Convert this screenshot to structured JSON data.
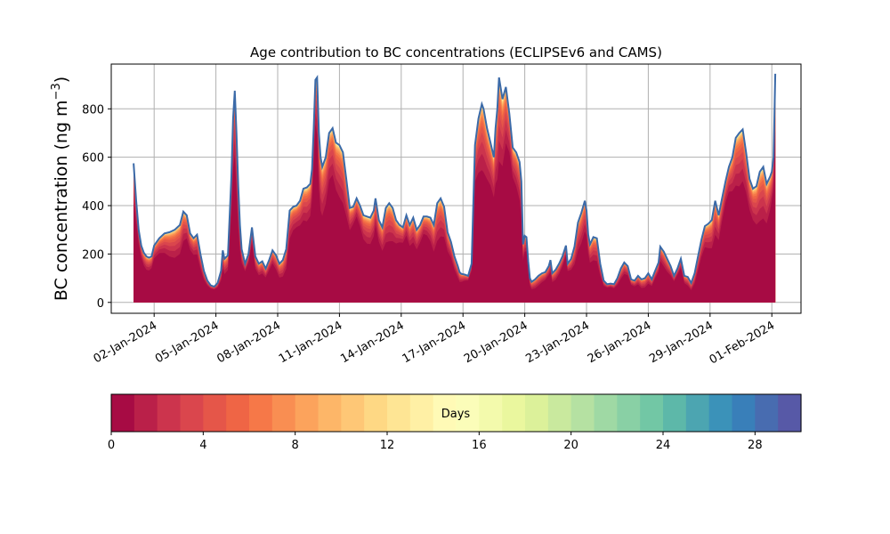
{
  "chart_data": {
    "type": "area",
    "title": "Age contribution to BC concentrations (ECLIPSEv6 and CAMS)",
    "ylabel": "BC concentration (ng m",
    "ylabel_sup": "−3",
    "ylabel_close": ")",
    "xlabel": "",
    "ylim": [
      -45,
      985
    ],
    "yticks": [
      0,
      200,
      400,
      600,
      800
    ],
    "xlim": [
      "2023-12-30T22:00",
      "2024-02-02T10:00"
    ],
    "xticks": [
      "02-Jan-2024",
      "05-Jan-2024",
      "08-Jan-2024",
      "11-Jan-2024",
      "14-Jan-2024",
      "17-Jan-2024",
      "20-Jan-2024",
      "23-Jan-2024",
      "26-Jan-2024",
      "29-Jan-2024",
      "01-Feb-2024"
    ],
    "xtick_dates": [
      "2024-01-02",
      "2024-01-05",
      "2024-01-08",
      "2024-01-11",
      "2024-01-14",
      "2024-01-17",
      "2024-01-20",
      "2024-01-23",
      "2024-01-26",
      "2024-01-29",
      "2024-02-01"
    ],
    "grid": true,
    "series_note_colormap": "Spectral",
    "total": [
      [
        "2024-01-01T00:00",
        575
      ],
      [
        "2024-01-01T03:00",
        420
      ],
      [
        "2024-01-01T06:00",
        300
      ],
      [
        "2024-01-01T09:00",
        235
      ],
      [
        "2024-01-01T12:00",
        205
      ],
      [
        "2024-01-01T15:00",
        190
      ],
      [
        "2024-01-01T18:00",
        185
      ],
      [
        "2024-01-01T21:00",
        190
      ],
      [
        "2024-01-02T00:00",
        235
      ],
      [
        "2024-01-02T06:00",
        265
      ],
      [
        "2024-01-02T12:00",
        285
      ],
      [
        "2024-01-02T18:00",
        290
      ],
      [
        "2024-01-03T00:00",
        300
      ],
      [
        "2024-01-03T06:00",
        320
      ],
      [
        "2024-01-03T10:00",
        375
      ],
      [
        "2024-01-03T14:00",
        360
      ],
      [
        "2024-01-03T18:00",
        285
      ],
      [
        "2024-01-03T22:00",
        265
      ],
      [
        "2024-01-04T02:00",
        280
      ],
      [
        "2024-01-04T06:00",
        200
      ],
      [
        "2024-01-04T10:00",
        130
      ],
      [
        "2024-01-04T14:00",
        90
      ],
      [
        "2024-01-04T18:00",
        70
      ],
      [
        "2024-01-04T22:00",
        65
      ],
      [
        "2024-01-05T02:00",
        80
      ],
      [
        "2024-01-05T06:00",
        130
      ],
      [
        "2024-01-05T08:00",
        215
      ],
      [
        "2024-01-05T10:00",
        180
      ],
      [
        "2024-01-05T14:00",
        195
      ],
      [
        "2024-01-05T18:00",
        520
      ],
      [
        "2024-01-05T20:00",
        760
      ],
      [
        "2024-01-05T22:00",
        875
      ],
      [
        "2024-01-06T00:00",
        700
      ],
      [
        "2024-01-06T02:00",
        480
      ],
      [
        "2024-01-06T04:00",
        320
      ],
      [
        "2024-01-06T06:00",
        220
      ],
      [
        "2024-01-06T10:00",
        160
      ],
      [
        "2024-01-06T14:00",
        200
      ],
      [
        "2024-01-06T18:00",
        310
      ],
      [
        "2024-01-06T22:00",
        190
      ],
      [
        "2024-01-07T02:00",
        160
      ],
      [
        "2024-01-07T06:00",
        170
      ],
      [
        "2024-01-07T10:00",
        140
      ],
      [
        "2024-01-07T14:00",
        175
      ],
      [
        "2024-01-07T18:00",
        215
      ],
      [
        "2024-01-07T22:00",
        195
      ],
      [
        "2024-01-08T02:00",
        160
      ],
      [
        "2024-01-08T06:00",
        175
      ],
      [
        "2024-01-08T10:00",
        220
      ],
      [
        "2024-01-08T14:00",
        380
      ],
      [
        "2024-01-08T18:00",
        395
      ],
      [
        "2024-01-08T22:00",
        400
      ],
      [
        "2024-01-09T02:00",
        420
      ],
      [
        "2024-01-09T06:00",
        470
      ],
      [
        "2024-01-09T10:00",
        475
      ],
      [
        "2024-01-09T14:00",
        490
      ],
      [
        "2024-01-09T16:00",
        550
      ],
      [
        "2024-01-09T18:00",
        720
      ],
      [
        "2024-01-09T20:00",
        920
      ],
      [
        "2024-01-09T22:00",
        930
      ],
      [
        "2024-01-10T00:00",
        700
      ],
      [
        "2024-01-10T02:00",
        600
      ],
      [
        "2024-01-10T04:00",
        560
      ],
      [
        "2024-01-10T08:00",
        600
      ],
      [
        "2024-01-10T12:00",
        700
      ],
      [
        "2024-01-10T16:00",
        720
      ],
      [
        "2024-01-10T20:00",
        660
      ],
      [
        "2024-01-11T00:00",
        650
      ],
      [
        "2024-01-11T04:00",
        620
      ],
      [
        "2024-01-11T08:00",
        510
      ],
      [
        "2024-01-11T12:00",
        390
      ],
      [
        "2024-01-11T16:00",
        395
      ],
      [
        "2024-01-11T20:00",
        430
      ],
      [
        "2024-01-12T00:00",
        400
      ],
      [
        "2024-01-12T04:00",
        360
      ],
      [
        "2024-01-12T08:00",
        355
      ],
      [
        "2024-01-12T12:00",
        350
      ],
      [
        "2024-01-12T16:00",
        380
      ],
      [
        "2024-01-12T18:00",
        430
      ],
      [
        "2024-01-12T22:00",
        340
      ],
      [
        "2024-01-13T02:00",
        310
      ],
      [
        "2024-01-13T06:00",
        390
      ],
      [
        "2024-01-13T10:00",
        410
      ],
      [
        "2024-01-13T14:00",
        390
      ],
      [
        "2024-01-13T18:00",
        340
      ],
      [
        "2024-01-13T22:00",
        320
      ],
      [
        "2024-01-14T02:00",
        310
      ],
      [
        "2024-01-14T06:00",
        360
      ],
      [
        "2024-01-14T10:00",
        320
      ],
      [
        "2024-01-14T14:00",
        350
      ],
      [
        "2024-01-14T18:00",
        300
      ],
      [
        "2024-01-14T22:00",
        320
      ],
      [
        "2024-01-15T02:00",
        355
      ],
      [
        "2024-01-15T06:00",
        355
      ],
      [
        "2024-01-15T10:00",
        350
      ],
      [
        "2024-01-15T14:00",
        320
      ],
      [
        "2024-01-15T18:00",
        410
      ],
      [
        "2024-01-15T22:00",
        430
      ],
      [
        "2024-01-16T02:00",
        395
      ],
      [
        "2024-01-16T06:00",
        290
      ],
      [
        "2024-01-16T10:00",
        250
      ],
      [
        "2024-01-16T14:00",
        190
      ],
      [
        "2024-01-16T18:00",
        150
      ],
      [
        "2024-01-16T20:00",
        125
      ],
      [
        "2024-01-16T22:00",
        118
      ],
      [
        "2024-01-17T02:00",
        115
      ],
      [
        "2024-01-17T06:00",
        110
      ],
      [
        "2024-01-17T10:00",
        160
      ],
      [
        "2024-01-17T14:00",
        650
      ],
      [
        "2024-01-17T18:00",
        760
      ],
      [
        "2024-01-17T22:00",
        820
      ],
      [
        "2024-01-18T00:00",
        800
      ],
      [
        "2024-01-18T04:00",
        720
      ],
      [
        "2024-01-18T08:00",
        660
      ],
      [
        "2024-01-18T12:00",
        600
      ],
      [
        "2024-01-18T14:00",
        720
      ],
      [
        "2024-01-18T16:00",
        800
      ],
      [
        "2024-01-18T18:00",
        930
      ],
      [
        "2024-01-18T22:00",
        840
      ],
      [
        "2024-01-19T02:00",
        890
      ],
      [
        "2024-01-19T06:00",
        780
      ],
      [
        "2024-01-19T10:00",
        640
      ],
      [
        "2024-01-19T14:00",
        620
      ],
      [
        "2024-01-19T18:00",
        580
      ],
      [
        "2024-01-19T20:00",
        500
      ],
      [
        "2024-01-19T22:00",
        240
      ],
      [
        "2024-01-20T00:00",
        275
      ],
      [
        "2024-01-20T02:00",
        270
      ],
      [
        "2024-01-20T04:00",
        170
      ],
      [
        "2024-01-20T06:00",
        100
      ],
      [
        "2024-01-20T08:00",
        85
      ],
      [
        "2024-01-20T12:00",
        95
      ],
      [
        "2024-01-20T16:00",
        110
      ],
      [
        "2024-01-20T20:00",
        120
      ],
      [
        "2024-01-21T00:00",
        125
      ],
      [
        "2024-01-21T04:00",
        150
      ],
      [
        "2024-01-21T06:00",
        175
      ],
      [
        "2024-01-21T08:00",
        120
      ],
      [
        "2024-01-21T12:00",
        135
      ],
      [
        "2024-01-21T16:00",
        160
      ],
      [
        "2024-01-21T20:00",
        190
      ],
      [
        "2024-01-22T00:00",
        235
      ],
      [
        "2024-01-22T02:00",
        160
      ],
      [
        "2024-01-22T06:00",
        180
      ],
      [
        "2024-01-22T10:00",
        230
      ],
      [
        "2024-01-22T14:00",
        330
      ],
      [
        "2024-01-22T18:00",
        370
      ],
      [
        "2024-01-22T22:00",
        420
      ],
      [
        "2024-01-23T00:00",
        380
      ],
      [
        "2024-01-23T02:00",
        280
      ],
      [
        "2024-01-23T04:00",
        240
      ],
      [
        "2024-01-23T08:00",
        270
      ],
      [
        "2024-01-23T12:00",
        265
      ],
      [
        "2024-01-23T16:00",
        160
      ],
      [
        "2024-01-23T20:00",
        90
      ],
      [
        "2024-01-24T00:00",
        75
      ],
      [
        "2024-01-24T04:00",
        78
      ],
      [
        "2024-01-24T08:00",
        75
      ],
      [
        "2024-01-24T12:00",
        100
      ],
      [
        "2024-01-24T16:00",
        140
      ],
      [
        "2024-01-24T20:00",
        165
      ],
      [
        "2024-01-25T00:00",
        150
      ],
      [
        "2024-01-25T04:00",
        95
      ],
      [
        "2024-01-25T08:00",
        90
      ],
      [
        "2024-01-25T12:00",
        110
      ],
      [
        "2024-01-25T16:00",
        95
      ],
      [
        "2024-01-25T20:00",
        100
      ],
      [
        "2024-01-26T00:00",
        120
      ],
      [
        "2024-01-26T04:00",
        95
      ],
      [
        "2024-01-26T08:00",
        130
      ],
      [
        "2024-01-26T12:00",
        165
      ],
      [
        "2024-01-26T14:00",
        230
      ],
      [
        "2024-01-26T18:00",
        210
      ],
      [
        "2024-01-26T22:00",
        180
      ],
      [
        "2024-01-27T02:00",
        150
      ],
      [
        "2024-01-27T06:00",
        110
      ],
      [
        "2024-01-27T10:00",
        140
      ],
      [
        "2024-01-27T14:00",
        180
      ],
      [
        "2024-01-27T18:00",
        110
      ],
      [
        "2024-01-27T22:00",
        105
      ],
      [
        "2024-01-28T02:00",
        80
      ],
      [
        "2024-01-28T06:00",
        120
      ],
      [
        "2024-01-28T10:00",
        190
      ],
      [
        "2024-01-28T14:00",
        260
      ],
      [
        "2024-01-28T18:00",
        315
      ],
      [
        "2024-01-28T22:00",
        325
      ],
      [
        "2024-01-29T02:00",
        340
      ],
      [
        "2024-01-29T06:00",
        420
      ],
      [
        "2024-01-29T10:00",
        360
      ],
      [
        "2024-01-29T14:00",
        430
      ],
      [
        "2024-01-29T18:00",
        500
      ],
      [
        "2024-01-29T22:00",
        560
      ],
      [
        "2024-01-30T02:00",
        600
      ],
      [
        "2024-01-30T06:00",
        680
      ],
      [
        "2024-01-30T10:00",
        700
      ],
      [
        "2024-01-30T14:00",
        715
      ],
      [
        "2024-01-30T18:00",
        620
      ],
      [
        "2024-01-30T22:00",
        510
      ],
      [
        "2024-01-31T02:00",
        470
      ],
      [
        "2024-01-31T06:00",
        480
      ],
      [
        "2024-01-31T10:00",
        540
      ],
      [
        "2024-01-31T14:00",
        560
      ],
      [
        "2024-01-31T18:00",
        490
      ],
      [
        "2024-01-31T22:00",
        520
      ],
      [
        "2024-02-01T00:00",
        540
      ],
      [
        "2024-02-01T02:00",
        600
      ],
      [
        "2024-02-01T04:00",
        945
      ]
    ],
    "colorbar": {
      "label": "Days",
      "ticks": [
        0,
        4,
        8,
        12,
        16,
        20,
        24,
        28
      ],
      "range": [
        0,
        30
      ],
      "bins": 30,
      "colormap": "Spectral"
    },
    "colors": {
      "line": "#3b6aa8",
      "grid": "#b0b0b0",
      "day0": "#9e0142",
      "day30": "#5e4fa2"
    }
  }
}
